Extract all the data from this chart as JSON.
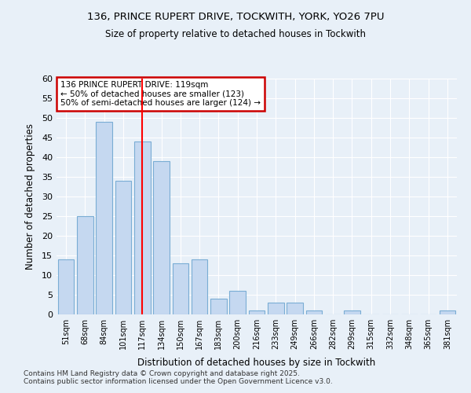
{
  "title1": "136, PRINCE RUPERT DRIVE, TOCKWITH, YORK, YO26 7PU",
  "title2": "Size of property relative to detached houses in Tockwith",
  "xlabel": "Distribution of detached houses by size in Tockwith",
  "ylabel": "Number of detached properties",
  "categories": [
    "51sqm",
    "68sqm",
    "84sqm",
    "101sqm",
    "117sqm",
    "134sqm",
    "150sqm",
    "167sqm",
    "183sqm",
    "200sqm",
    "216sqm",
    "233sqm",
    "249sqm",
    "266sqm",
    "282sqm",
    "299sqm",
    "315sqm",
    "332sqm",
    "348sqm",
    "365sqm",
    "381sqm"
  ],
  "values": [
    14,
    25,
    49,
    34,
    44,
    39,
    13,
    14,
    4,
    6,
    1,
    3,
    3,
    1,
    0,
    1,
    0,
    0,
    0,
    0,
    1
  ],
  "bar_color": "#c5d8f0",
  "bar_edge_color": "#7aadd4",
  "bg_color": "#e8f0f8",
  "grid_color": "#ffffff",
  "red_line_index": 4,
  "annotation_text": "136 PRINCE RUPERT DRIVE: 119sqm\n← 50% of detached houses are smaller (123)\n50% of semi-detached houses are larger (124) →",
  "annotation_box_color": "#ffffff",
  "annotation_box_edge": "#cc0000",
  "ylim": [
    0,
    60
  ],
  "yticks": [
    0,
    5,
    10,
    15,
    20,
    25,
    30,
    35,
    40,
    45,
    50,
    55,
    60
  ],
  "footnote": "Contains HM Land Registry data © Crown copyright and database right 2025.\nContains public sector information licensed under the Open Government Licence v3.0."
}
